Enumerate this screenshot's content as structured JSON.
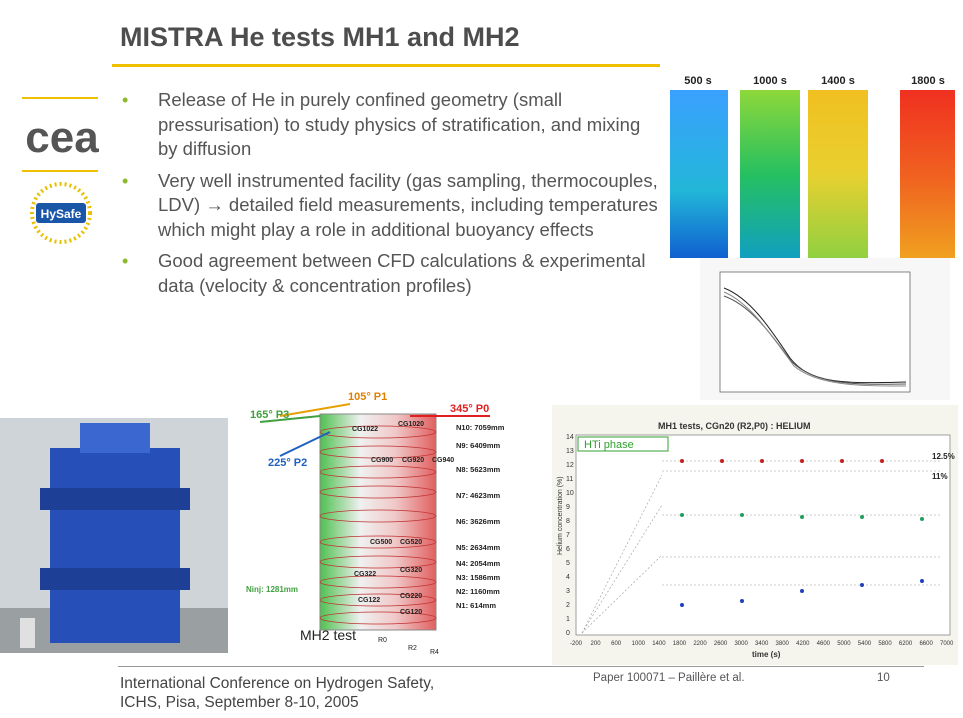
{
  "slide": {
    "title": "MISTRA He tests MH1 and MH2",
    "bullets": [
      "Release of He in purely confined geometry (small pressurisation) to study physics of stratification, and mixing by diffusion",
      "Very well instrumented facility (gas sampling, thermocouples, LDV) → detailed field measurements, including temperatures which might play a role in additional buoyancy effects",
      "Good agreement between CFD calculations & experimental data (velocity & concentration profiles)"
    ],
    "bullet_glyph": "•"
  },
  "logos": {
    "cea": "cea",
    "hysafe": "HySafe"
  },
  "sims": {
    "times": [
      "500 s",
      "1000 s",
      "1400 s",
      "1800 s"
    ]
  },
  "schematic": {
    "angle_p1": "105° P1",
    "angle_p3": "165° P3",
    "angle_p0": "345° P0",
    "angle_p2": "225° P2",
    "cg_labels": [
      "CG1022",
      "CG1020",
      "CG900",
      "CG920",
      "CG940",
      "CG500",
      "CG520",
      "CG322",
      "CG320",
      "CG122",
      "CG220",
      "CG120"
    ],
    "levels": [
      "N10: 7059mm",
      "N9: 6409mm",
      "N8: 5623mm",
      "N7: 4623mm",
      "N6: 3626mm",
      "N5: 2634mm",
      "N4: 2054mm",
      "N3: 1586mm",
      "N2: 1160mm",
      "N1: 614mm"
    ],
    "ninj": "Ninj: 1281mm",
    "r_labels": [
      "R0",
      "R2",
      "R4"
    ],
    "test_label": "MH2 test"
  },
  "conc_chart": {
    "title": "MH1 tests, CGn20 (R2,P0) : HELIUM",
    "phase": "HTi phase",
    "ylabel": "Helium concentration (%)",
    "xlabel": "time (s)",
    "y_ticks": [
      "14",
      "13",
      "12",
      "11",
      "10",
      "9",
      "8",
      "7",
      "6",
      "5",
      "4",
      "3",
      "2",
      "1",
      "0"
    ],
    "x_ticks": [
      "-200",
      "200",
      "600",
      "1000",
      "1400",
      "1800",
      "2200",
      "2600",
      "3000",
      "3400",
      "3800",
      "4200",
      "4600",
      "5000",
      "5400",
      "5800",
      "6200",
      "6600",
      "7000"
    ],
    "annot_top": "12.5%",
    "annot_11": "11%"
  },
  "footer": {
    "conference_line1": "International Conference on Hydrogen Safety,",
    "conference_line2": "ICHS, Pisa, September 8-10, 2005",
    "paper": "Paper 100071 – Paillère et al.",
    "page": "10"
  },
  "colors": {
    "accent_yellow": "#f0c000",
    "bullet_green": "#8cb82b",
    "title_gray": "#4d4d4d"
  }
}
